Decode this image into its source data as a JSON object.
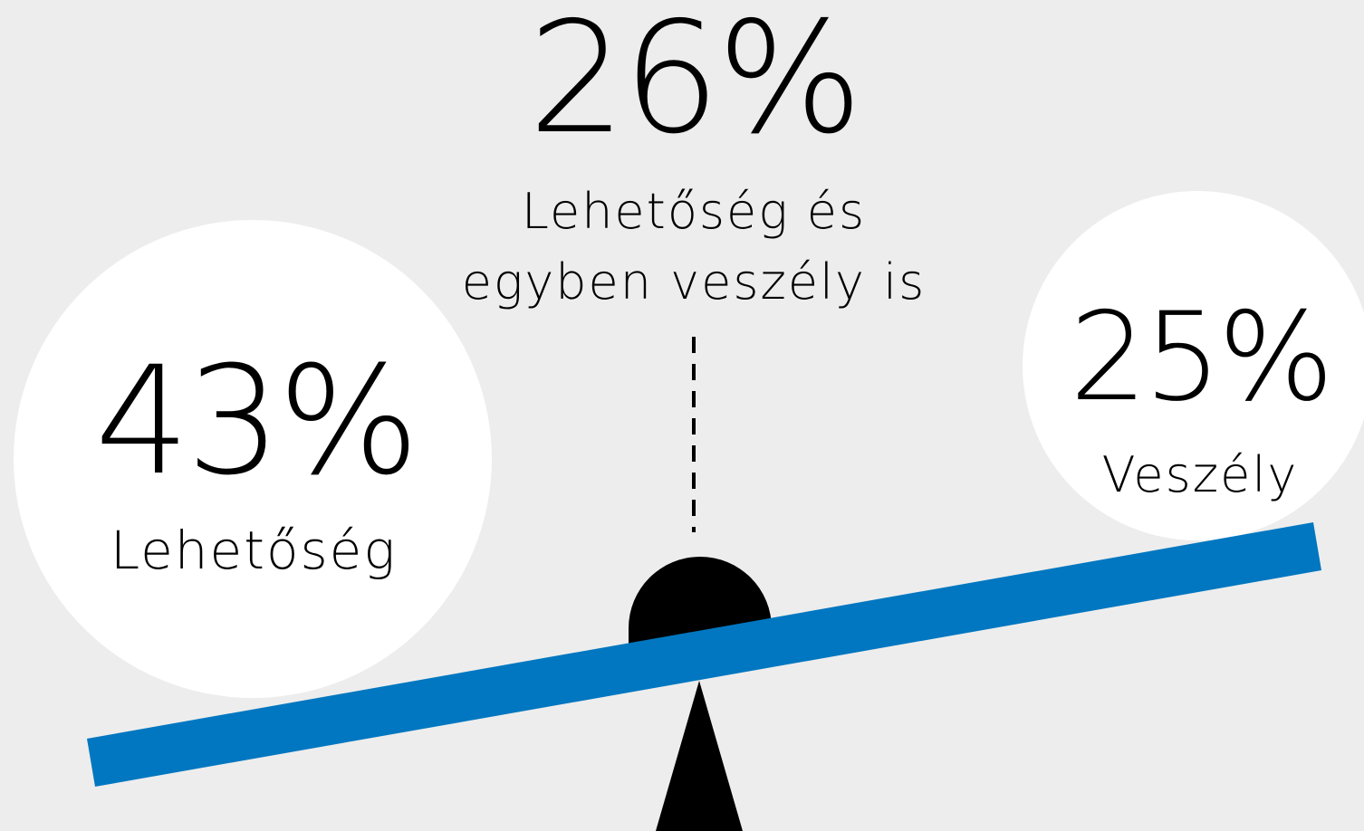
{
  "center": {
    "value": "26%",
    "lines": [
      "Lehetőség és",
      "egyben veszély is"
    ]
  },
  "left": {
    "value": "43%",
    "label": "Lehetőség"
  },
  "right": {
    "value": "25%",
    "label": "Veszély"
  }
}
